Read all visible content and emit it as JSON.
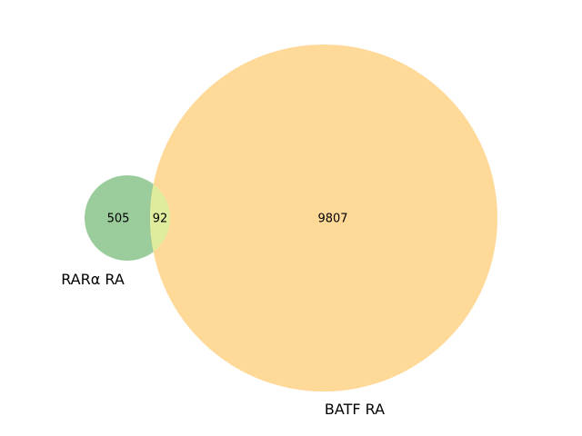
{
  "venn": {
    "sets": [
      {
        "name": "RARα RA",
        "color": "#9bcc9b"
      },
      {
        "name": "BATF RA",
        "color": "#fed998"
      }
    ],
    "overlap_color": "#dfec9e",
    "regions": {
      "only_a": "505",
      "overlap": "92",
      "only_b": "9807"
    }
  }
}
